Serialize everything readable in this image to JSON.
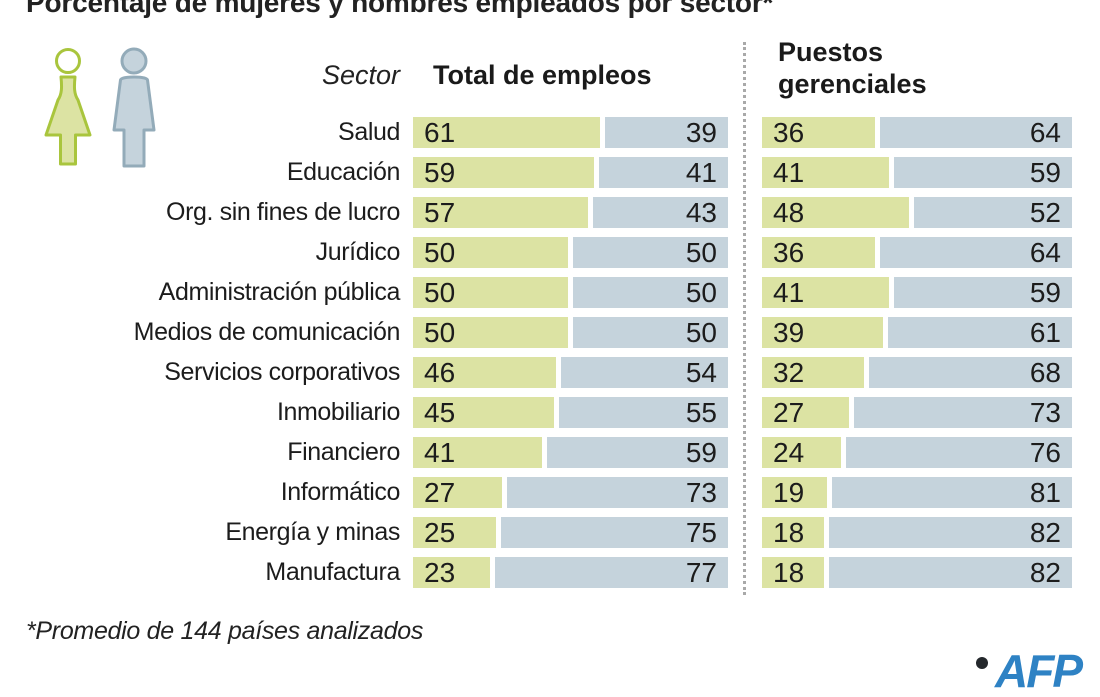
{
  "title": "Porcentaje de mujeres y hombres empleados por sector*",
  "headers": {
    "sector": "Sector",
    "total": "Total de empleos",
    "gerencial": "Puestos gerenciales"
  },
  "footnote": "*Promedio de 144 países analizados",
  "logo": {
    "text": "AFP"
  },
  "colors": {
    "women_bar": "#dce3a3",
    "men_bar": "#c5d3dc",
    "woman_icon_stroke": "#a9c53d",
    "man_icon_stroke": "#93abb9",
    "divider": "#a9a9a9",
    "logo_blue": "#2e82c4",
    "text": "#1c1c1c"
  },
  "chart_data": {
    "type": "bar",
    "title": "Porcentaje de mujeres y hombres empleados por sector*",
    "subtitle_note": "*Promedio de 144 países analizados",
    "unit": "%",
    "stacked": true,
    "xlim": [
      0,
      100
    ],
    "grid": false,
    "legend": "pictogram (mujer verde, hombre azul)",
    "categories": [
      "Salud",
      "Educación",
      "Org. sin fines de lucro",
      "Jurídico",
      "Administración pública",
      "Medios de comunicación",
      "Servicios corporativos",
      "Inmobiliario",
      "Financiero",
      "Informático",
      "Energía y minas",
      "Manufactura"
    ],
    "groups": [
      "Total de empleos",
      "Puestos gerenciales"
    ],
    "series": [
      {
        "name": "Mujeres - Total de empleos",
        "values": [
          61,
          59,
          57,
          50,
          50,
          50,
          46,
          45,
          41,
          27,
          25,
          23
        ]
      },
      {
        "name": "Hombres - Total de empleos",
        "values": [
          39,
          41,
          43,
          50,
          50,
          50,
          54,
          55,
          59,
          73,
          75,
          77
        ]
      },
      {
        "name": "Mujeres - Puestos gerenciales",
        "values": [
          36,
          41,
          48,
          36,
          41,
          39,
          32,
          27,
          24,
          19,
          18,
          18
        ]
      },
      {
        "name": "Hombres - Puestos gerenciales",
        "values": [
          64,
          59,
          52,
          64,
          59,
          61,
          68,
          73,
          76,
          81,
          82,
          82
        ]
      }
    ]
  }
}
